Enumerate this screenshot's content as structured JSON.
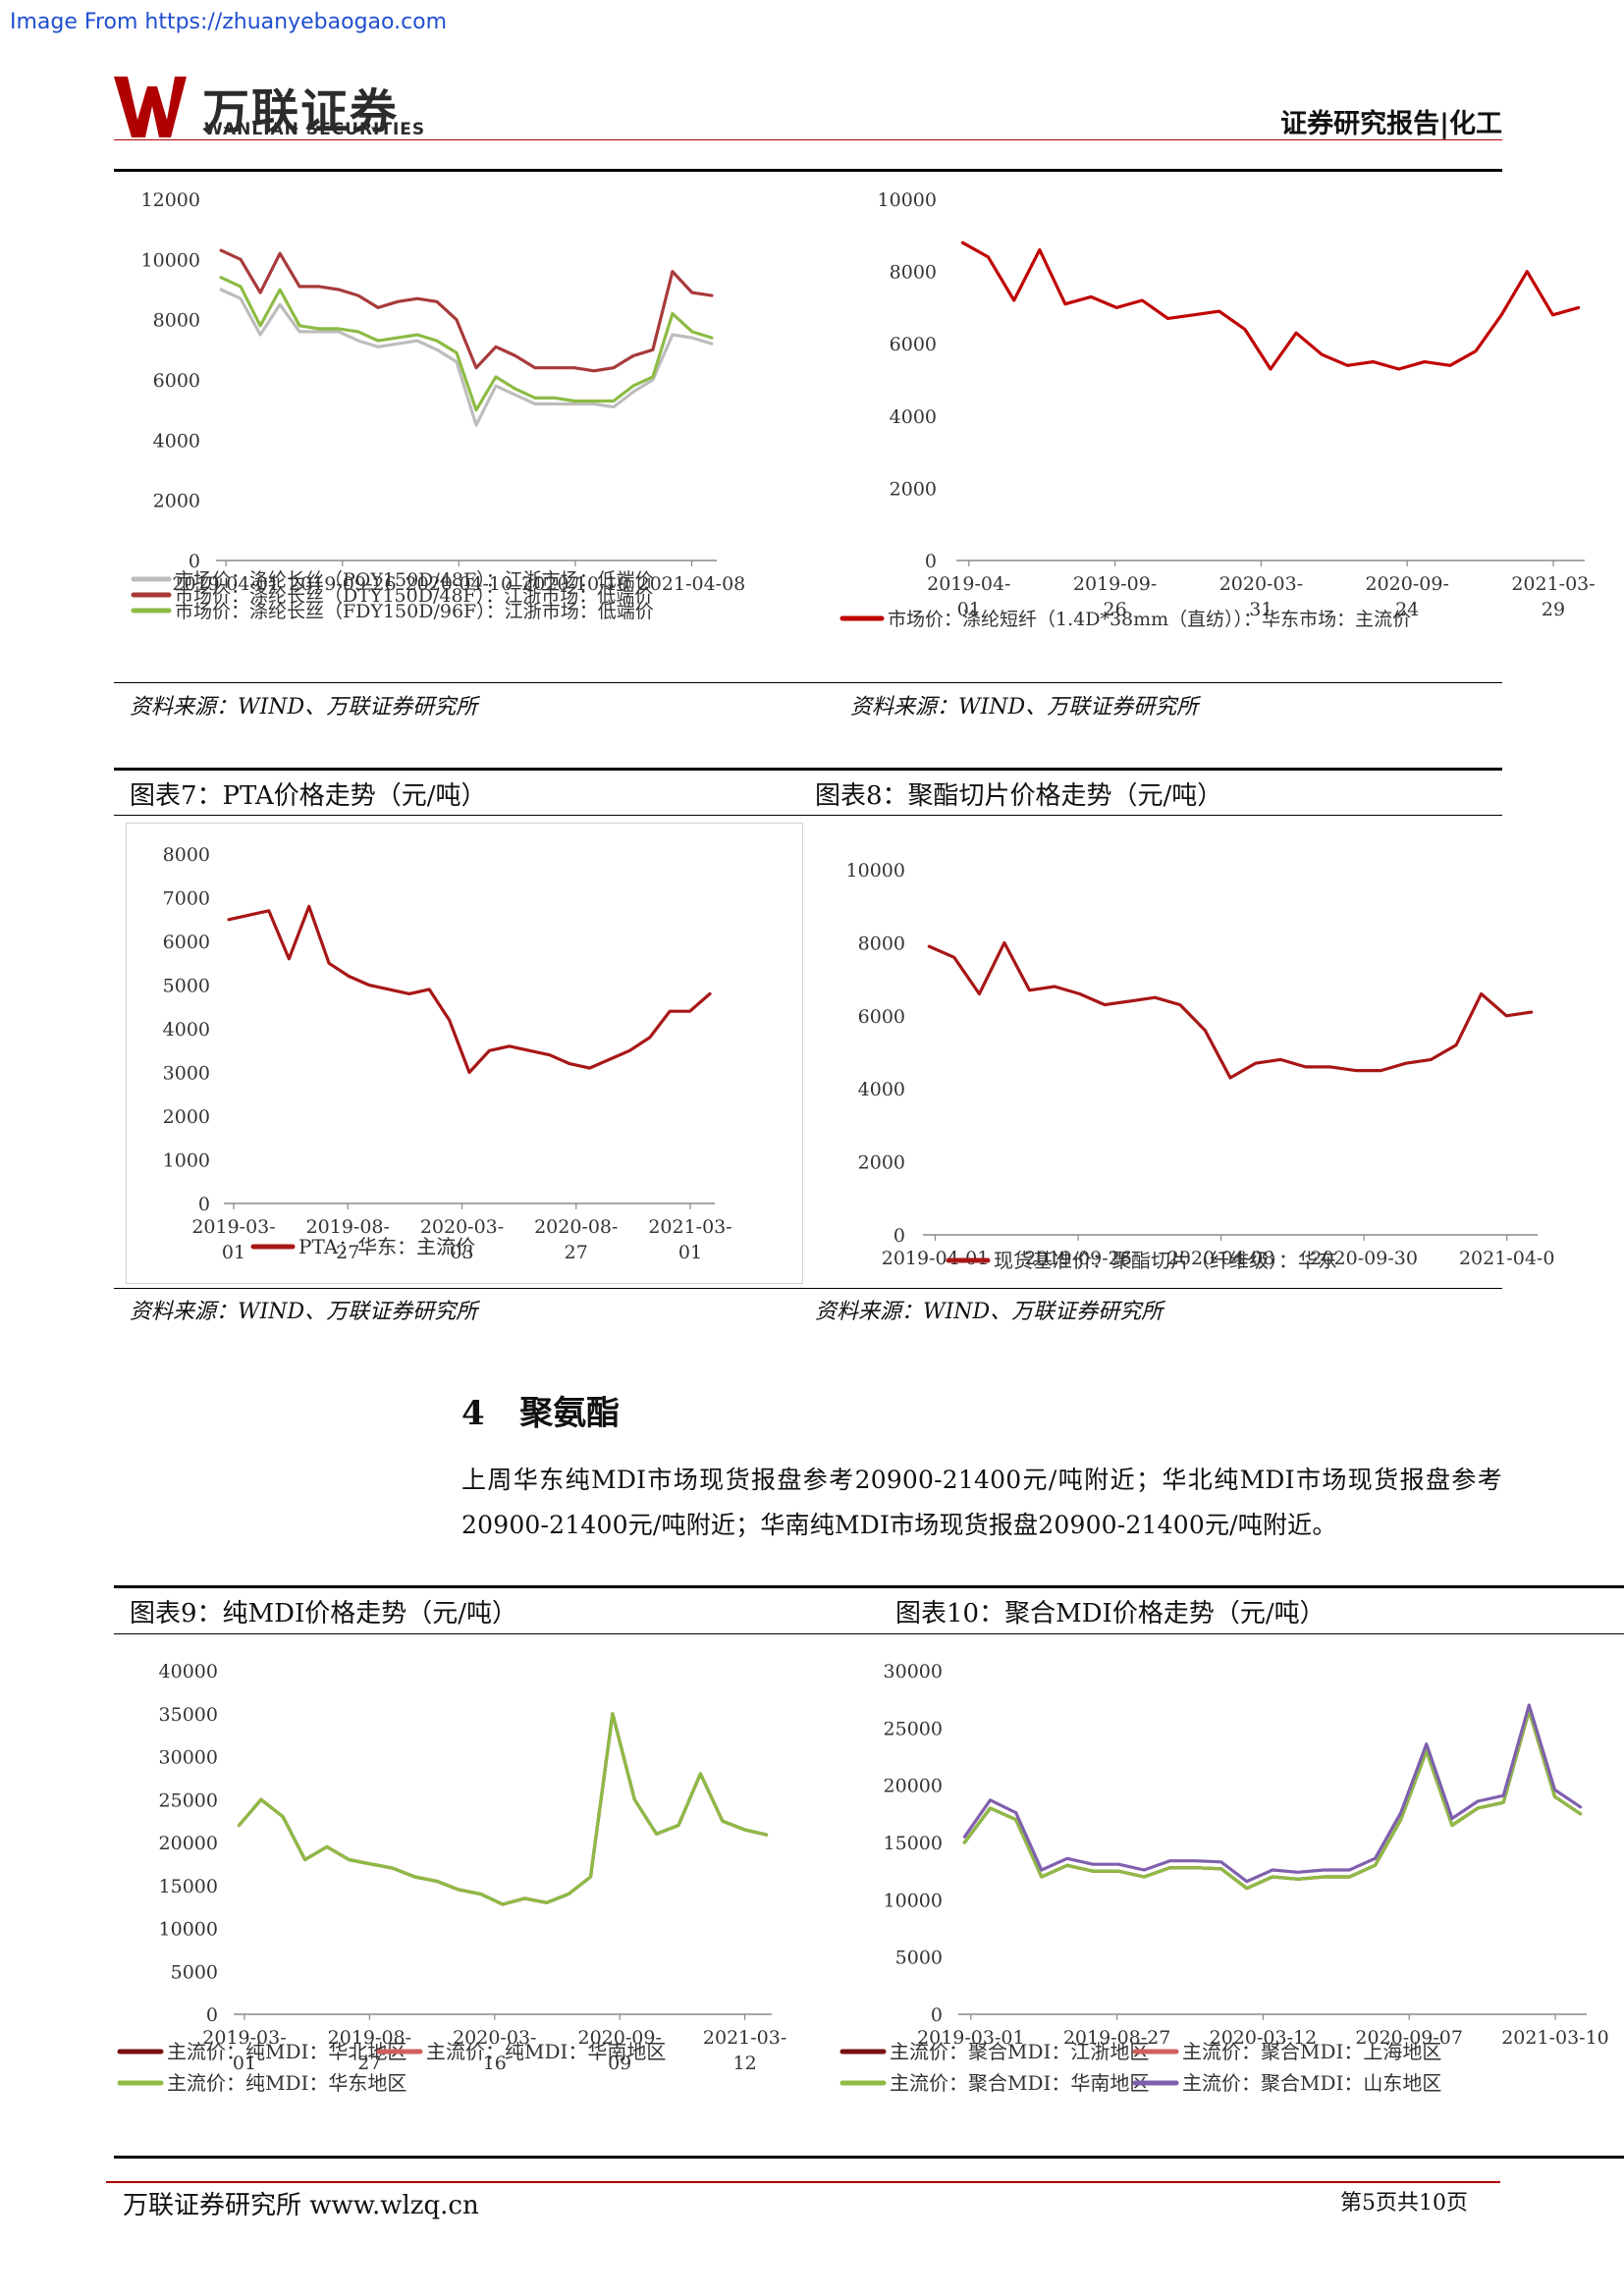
{
  "source_banner": "Image From https://zhuanyebaogao.com",
  "logo": {
    "cn": "万联证券",
    "en": "WANLIAN SECURITIES",
    "mark": "W"
  },
  "header": {
    "right": "证券研究报告|化工"
  },
  "figures": {
    "fig6": {
      "source": "资料来源：WIND、万联证券研究所"
    },
    "fig_short_fiber": {
      "source": "资料来源：WIND、万联证券研究所"
    },
    "fig7": {
      "title": "图表7：PTA价格走势（元/吨）",
      "source": "资料来源：WIND、万联证券研究所"
    },
    "fig8": {
      "title": "图表8：聚酯切片价格走势（元/吨）",
      "source": "资料来源：WIND、万联证券研究所"
    },
    "fig9": {
      "title": "图表9：纯MDI价格走势（元/吨）"
    },
    "fig10": {
      "title": "图表10：聚合MDI价格走势（元/吨）"
    }
  },
  "section": {
    "number": "4",
    "title": "聚氨酯"
  },
  "paragraph": "上周华东纯MDI市场现货报盘参考20900-21400元/吨附近；华北纯MDI市场现货报盘参考20900-21400元/吨附近；华南纯MDI市场现货报盘20900-21400元/吨附近。",
  "footer": {
    "left": "万联证券研究所 www.wlzq.cn",
    "right": "第5页共10页"
  },
  "colors": {
    "accent_red": "#b00000",
    "dark_red": "#a83a3a",
    "red": "#c00000",
    "grey": "#bdbdbd",
    "green": "#8dbb45",
    "purple": "#7f5fae"
  },
  "chart_data": [
    {
      "id": "polyester_filament",
      "type": "line",
      "ylim": [
        0,
        12000
      ],
      "yticks": [
        "0",
        "2000",
        "4000",
        "6000",
        "8000",
        "10000",
        "12000"
      ],
      "xticklabels": [
        "2019-04-01",
        "2019-09-26",
        "2020-04-10",
        "2020-10-10",
        "2021-04-08"
      ],
      "series": [
        {
          "name": "市场价：涤纶长丝（POY150D/48F）：江浙市场：低端价",
          "color": "#bdbdbd",
          "values": [
            9000,
            8700,
            7500,
            8500,
            7600,
            7600,
            7600,
            7300,
            7100,
            7200,
            7300,
            7000,
            6600,
            4500,
            5800,
            5500,
            5200,
            5200,
            5200,
            5200,
            5100,
            5600,
            6000,
            7500,
            7400,
            7200
          ]
        },
        {
          "name": "市场价：涤纶长丝（DTY150D/48F）：江浙市场：低端价",
          "color": "#a83a3a",
          "values": [
            10300,
            10000,
            8900,
            10200,
            9100,
            9100,
            9000,
            8800,
            8400,
            8600,
            8700,
            8600,
            8000,
            6400,
            7100,
            6800,
            6400,
            6400,
            6400,
            6300,
            6400,
            6800,
            7000,
            9600,
            8900,
            8800
          ]
        },
        {
          "name": "市场价：涤纶长丝（FDY150D/96F）：江浙市场：低端价",
          "color": "#8dbb45",
          "values": [
            9400,
            9100,
            7800,
            9000,
            7800,
            7700,
            7700,
            7600,
            7300,
            7400,
            7500,
            7300,
            6900,
            5000,
            6100,
            5700,
            5400,
            5400,
            5300,
            5300,
            5300,
            5800,
            6100,
            8200,
            7600,
            7400
          ]
        }
      ]
    },
    {
      "id": "polyester_short_fiber",
      "type": "line",
      "ylim": [
        0,
        10000
      ],
      "yticks": [
        "0",
        "2000",
        "4000",
        "6000",
        "8000",
        "10000"
      ],
      "xticklabels": [
        [
          "2019-04-",
          "01"
        ],
        [
          "2019-09-",
          "26"
        ],
        [
          "2020-03-",
          "31"
        ],
        [
          "2020-09-",
          "24"
        ],
        [
          "2021-03-",
          "29"
        ]
      ],
      "series": [
        {
          "name": "市场价：涤纶短纤（1.4D*38mm（直纺））：华东市场：主流价",
          "color": "#c00000",
          "values": [
            8800,
            8400,
            7200,
            8600,
            7100,
            7300,
            7000,
            7200,
            6700,
            6800,
            6900,
            6400,
            5300,
            6300,
            5700,
            5400,
            5500,
            5300,
            5500,
            5400,
            5800,
            6800,
            8000,
            6800,
            7000
          ]
        }
      ]
    },
    {
      "id": "pta",
      "type": "line",
      "ylim": [
        0,
        8000
      ],
      "yticks": [
        "0",
        "1000",
        "2000",
        "3000",
        "4000",
        "5000",
        "6000",
        "7000",
        "8000"
      ],
      "xticklabels": [
        [
          "2019-03-",
          "01"
        ],
        [
          "2019-08-",
          "27"
        ],
        [
          "2020-03-",
          "03"
        ],
        [
          "2020-08-",
          "27"
        ],
        [
          "2021-03-",
          "01"
        ]
      ],
      "series": [
        {
          "name": "PTA：华东：主流价",
          "color": "#a81616",
          "values": [
            6500,
            6600,
            6700,
            5600,
            6800,
            5500,
            5200,
            5000,
            4900,
            4800,
            4900,
            4200,
            3000,
            3500,
            3600,
            3500,
            3400,
            3200,
            3100,
            3300,
            3500,
            3800,
            4400,
            4400,
            4800
          ]
        }
      ]
    },
    {
      "id": "polyester_chip",
      "type": "line",
      "ylim": [
        0,
        10000
      ],
      "yticks": [
        "0",
        "2000",
        "4000",
        "6000",
        "8000",
        "10000"
      ],
      "xticklabels": [
        "2019-04-01",
        "2019-09-26",
        "2020-04-08",
        "2020-09-30",
        "2021-04-0"
      ],
      "series": [
        {
          "name": "现货基准价：聚酯切片（纤维级）：华东",
          "color": "#a81616",
          "values": [
            7900,
            7600,
            6600,
            8000,
            6700,
            6800,
            6600,
            6300,
            6400,
            6500,
            6300,
            5600,
            4300,
            4700,
            4800,
            4600,
            4600,
            4500,
            4500,
            4700,
            4800,
            5200,
            6600,
            6000,
            6100
          ]
        }
      ]
    },
    {
      "id": "pure_mdi",
      "type": "line",
      "ylim": [
        0,
        40000
      ],
      "yticks": [
        "0",
        "5000",
        "10000",
        "15000",
        "20000",
        "25000",
        "30000",
        "35000",
        "40000"
      ],
      "xticklabels": [
        [
          "2019-03-",
          "01"
        ],
        [
          "2019-08-",
          "27"
        ],
        [
          "2020-03-",
          "16"
        ],
        [
          "2020-09-",
          "09"
        ],
        [
          "2021-03-",
          "12"
        ]
      ],
      "series": [
        {
          "name": "主流价：纯MDI：华北地区",
          "color": "#7a1010",
          "values": [
            22000,
            25000,
            23000,
            18000,
            19500,
            18000,
            17500,
            17000,
            16000,
            15500,
            14500,
            14000,
            12800,
            13500,
            13000,
            14000,
            16000,
            35000,
            25000,
            21000,
            22000,
            28000,
            22500,
            21500,
            20900
          ]
        },
        {
          "name": "主流价：纯MDI：华南地区",
          "color": "#d06060",
          "values": [
            22000,
            25000,
            23000,
            18000,
            19500,
            18000,
            17500,
            17000,
            16000,
            15500,
            14500,
            14000,
            12800,
            13500,
            13000,
            14000,
            16000,
            35000,
            25000,
            21000,
            22000,
            28000,
            22500,
            21500,
            20900
          ]
        },
        {
          "name": "主流价：纯MDI：华东地区",
          "color": "#8dbb45",
          "values": [
            22000,
            25000,
            23000,
            18000,
            19500,
            18000,
            17500,
            17000,
            16000,
            15500,
            14500,
            14000,
            12800,
            13500,
            13000,
            14000,
            16000,
            35000,
            25000,
            21000,
            22000,
            28000,
            22500,
            21500,
            20900
          ]
        }
      ]
    },
    {
      "id": "polymeric_mdi",
      "type": "line",
      "ylim": [
        0,
        30000
      ],
      "yticks": [
        "0",
        "5000",
        "10000",
        "15000",
        "20000",
        "25000",
        "30000"
      ],
      "xticklabels": [
        "2019-03-01",
        "2019-08-27",
        "2020-03-12",
        "2020-09-07",
        "2021-03-10"
      ],
      "series": [
        {
          "name": "主流价：聚合MDI：江浙地区",
          "color": "#7a1010",
          "values": [
            15000,
            18000,
            17000,
            12000,
            13000,
            12500,
            12500,
            12000,
            12800,
            12800,
            12700,
            11000,
            12000,
            11800,
            12000,
            12000,
            13000,
            17000,
            23000,
            16500,
            18000,
            18500,
            26500,
            19000,
            17500
          ]
        },
        {
          "name": "主流价：聚合MDI：上海地区",
          "color": "#d06060",
          "values": [
            15000,
            18000,
            17000,
            12000,
            13000,
            12500,
            12500,
            12000,
            12800,
            12800,
            12700,
            11000,
            12000,
            11800,
            12000,
            12000,
            13000,
            17000,
            23000,
            16500,
            18000,
            18500,
            26500,
            19000,
            17500
          ]
        },
        {
          "name": "主流价：聚合MDI：华南地区",
          "color": "#8dbb45",
          "values": [
            15000,
            18000,
            17000,
            12000,
            13000,
            12500,
            12500,
            12000,
            12800,
            12800,
            12700,
            11000,
            12000,
            11800,
            12000,
            12000,
            13000,
            17000,
            23000,
            16500,
            18000,
            18500,
            26500,
            19000,
            17500
          ]
        },
        {
          "name": "主流价：聚合MDI：山东地区",
          "color": "#7f5fae",
          "values": [
            15500,
            18700,
            17600,
            12600,
            13600,
            13100,
            13100,
            12600,
            13400,
            13400,
            13300,
            11600,
            12600,
            12400,
            12600,
            12600,
            13600,
            17600,
            23600,
            17100,
            18600,
            19100,
            27000,
            19600,
            18100
          ]
        }
      ]
    }
  ]
}
